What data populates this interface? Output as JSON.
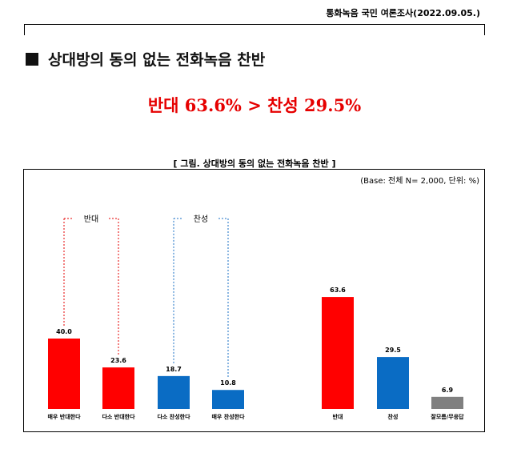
{
  "header": {
    "text": "통화녹음 국민 여론조사(2022.09.05.)"
  },
  "section": {
    "title": "상대방의 동의 없는 전화녹음 찬반"
  },
  "headline": {
    "text": "반대 63.6% > 찬성 29.5%"
  },
  "figure": {
    "caption": "[ 그림. 상대방의 동의 없는 전화녹음 찬반 ]",
    "base_note": "(Base: 전체 N= 2,000, 단위: %)"
  },
  "chart_data": {
    "type": "bar",
    "ylim": [
      0,
      70
    ],
    "groups": [
      {
        "label": "반대",
        "color": "#e60000",
        "members": [
          0,
          1
        ]
      },
      {
        "label": "찬성",
        "color": "#1a6fc4",
        "members": [
          2,
          3
        ]
      }
    ],
    "categories": [
      "매우 반대한다",
      "다소 반대한다",
      "다소 찬성한다",
      "매우 찬성한다",
      "반대",
      "찬성",
      "잘모름/무응답"
    ],
    "values": [
      40.0,
      23.6,
      18.7,
      10.8,
      63.6,
      29.5,
      6.9
    ],
    "value_labels": [
      "40.0",
      "23.6",
      "18.7",
      "10.8",
      "63.6",
      "29.5",
      "6.9"
    ],
    "colors": [
      "#ff0000",
      "#ff0000",
      "#0a6cc4",
      "#0a6cc4",
      "#ff0000",
      "#0a6cc4",
      "#808080"
    ]
  }
}
